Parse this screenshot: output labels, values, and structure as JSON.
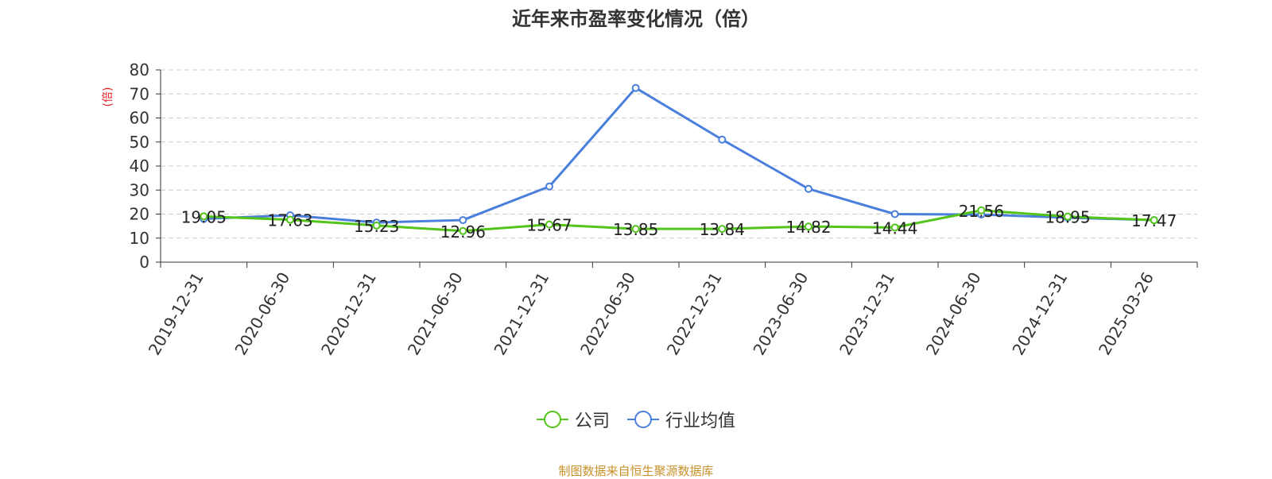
{
  "chart_data": {
    "type": "line",
    "title": "近年来市盈率变化情况（倍）",
    "ylabel": "(倍)",
    "xlabel": "",
    "categories": [
      "2019-12-31",
      "2020-06-30",
      "2020-12-31",
      "2021-06-30",
      "2021-12-31",
      "2022-06-30",
      "2022-12-31",
      "2023-06-30",
      "2023-12-31",
      "2024-06-30",
      "2024-12-31",
      "2025-03-26"
    ],
    "ylim": [
      0,
      80
    ],
    "yticks": [
      0,
      10,
      20,
      30,
      40,
      50,
      60,
      70,
      80
    ],
    "grid": true,
    "legend_position": "bottom",
    "series": [
      {
        "name": "公司",
        "color": "#52c41a",
        "values": [
          19.05,
          17.63,
          15.23,
          12.96,
          15.67,
          13.85,
          13.84,
          14.82,
          14.44,
          21.56,
          18.95,
          17.47
        ],
        "labels": [
          "19.05",
          "17.63",
          "15.23",
          "12.96",
          "15.67",
          "13.85",
          "13.84",
          "14.82",
          "14.44",
          "21.56",
          "18.95",
          "17.47"
        ]
      },
      {
        "name": "行业均值",
        "color": "#4a7fdc",
        "values": [
          18.0,
          19.5,
          16.5,
          17.5,
          31.5,
          72.5,
          51.0,
          30.5,
          20.0,
          19.8,
          18.5,
          17.5
        ]
      }
    ],
    "source_note": "制图数据来自恒生聚源数据库",
    "ylabel_color": "#e02020",
    "axis_color": "#333333",
    "grid_color": "#cccccc",
    "source_color": "#c8922a"
  }
}
